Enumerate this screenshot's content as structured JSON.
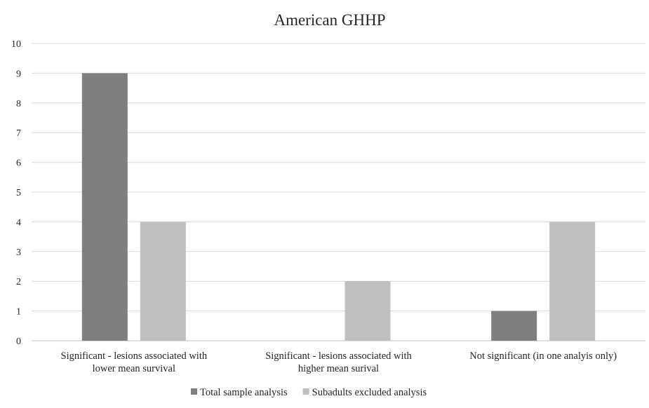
{
  "chart_data": {
    "type": "bar",
    "title": "American GHHP",
    "categories": [
      [
        "Significant - lesions associated with",
        "lower mean survival"
      ],
      [
        "Significant - lesions associated with",
        "higher mean surival"
      ],
      [
        "Not significant (in one analyis only)"
      ]
    ],
    "series": [
      {
        "name": "Total sample analysis",
        "values": [
          9,
          0,
          1
        ],
        "color": "#7f7f7f"
      },
      {
        "name": "Subadults excluded analysis",
        "values": [
          4,
          2,
          4
        ],
        "color": "#bfbfbf"
      }
    ],
    "ylim": [
      0,
      10
    ],
    "yticks": [
      0,
      1,
      2,
      3,
      4,
      5,
      6,
      7,
      8,
      9,
      10
    ],
    "grid": true,
    "legend_position": "bottom-center",
    "xlabel": "",
    "ylabel": ""
  }
}
